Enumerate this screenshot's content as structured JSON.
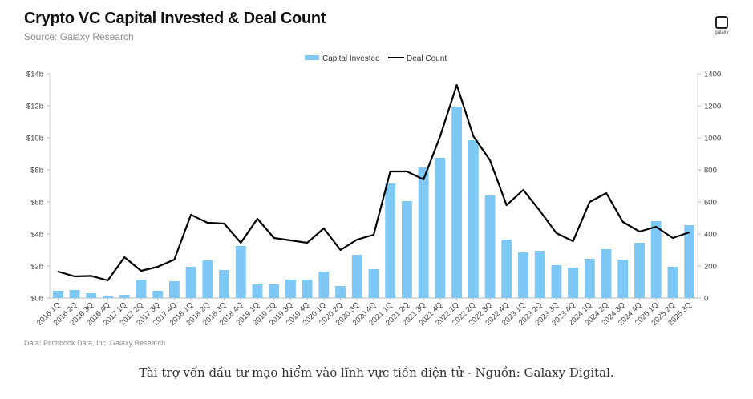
{
  "header": {
    "title": "Crypto VC Capital Invested & Deal Count",
    "subtitle": "Source: Galaxy Research",
    "logo_text": "galaxy"
  },
  "footer": {
    "data_note": "Data: Pitchbook Data, Inc, Galaxy Research",
    "caption": "Tài trợ vốn đầu tư mạo hiểm vào lĩnh vực tiền điện tử - Nguồn: Galaxy Digital."
  },
  "chart_data": {
    "type": "bar",
    "title": "Crypto VC Capital Invested & Deal Count",
    "categories": [
      "2016 1Q",
      "2016 2Q",
      "2016 3Q",
      "2016 4Q",
      "2017 1Q",
      "2017 2Q",
      "2017 3Q",
      "2017 4Q",
      "2018 1Q",
      "2018 2Q",
      "2018 3Q",
      "2018 4Q",
      "2019 1Q",
      "2019 2Q",
      "2019 3Q",
      "2019 4Q",
      "2020 1Q",
      "2020 2Q",
      "2020 3Q",
      "2020 4Q",
      "2021 1Q",
      "2021 2Q",
      "2021 3Q",
      "2021 4Q",
      "2022 1Q",
      "2022 2Q",
      "2022 3Q",
      "2022 4Q",
      "2023 1Q",
      "2023 2Q",
      "2023 3Q",
      "2023 4Q",
      "2024 1Q",
      "2024 2Q",
      "2024 3Q",
      "2024 4Q",
      "2025 1Q",
      "2025 2Q",
      "2025 3Q"
    ],
    "series": [
      {
        "name": "Capital Invested",
        "type": "bar",
        "axis": "left",
        "color": "#7ec8f5",
        "values": [
          0.45,
          0.5,
          0.3,
          0.12,
          0.2,
          1.15,
          0.45,
          1.05,
          1.95,
          2.35,
          1.75,
          3.25,
          0.85,
          0.85,
          1.15,
          1.15,
          1.65,
          0.75,
          2.7,
          1.8,
          7.15,
          6.05,
          8.15,
          8.75,
          11.95,
          9.85,
          6.4,
          3.65,
          2.85,
          2.95,
          2.05,
          1.9,
          2.45,
          3.05,
          2.4,
          3.45,
          4.8,
          1.95,
          4.55
        ]
      },
      {
        "name": "Deal Count",
        "type": "line",
        "axis": "right",
        "color": "#000000",
        "values": [
          165,
          135,
          138,
          110,
          255,
          170,
          195,
          240,
          520,
          470,
          465,
          345,
          495,
          375,
          360,
          345,
          435,
          300,
          365,
          395,
          790,
          790,
          740,
          1010,
          1330,
          1010,
          860,
          580,
          675,
          545,
          405,
          355,
          600,
          655,
          475,
          415,
          445,
          375,
          410
        ]
      }
    ],
    "y_left": {
      "label": "",
      "ticks": [
        "$0b",
        "$2b",
        "$4b",
        "$6b",
        "$8b",
        "$10b",
        "$12b",
        "$14b"
      ],
      "range": [
        0,
        14
      ]
    },
    "y_right": {
      "label": "",
      "ticks": [
        "0",
        "200",
        "400",
        "600",
        "800",
        "1000",
        "1200",
        "1400"
      ],
      "range": [
        0,
        1400
      ]
    },
    "legend": {
      "position": "top-center",
      "entries": [
        "Capital Invested",
        "Deal Count"
      ]
    },
    "grid": false
  }
}
